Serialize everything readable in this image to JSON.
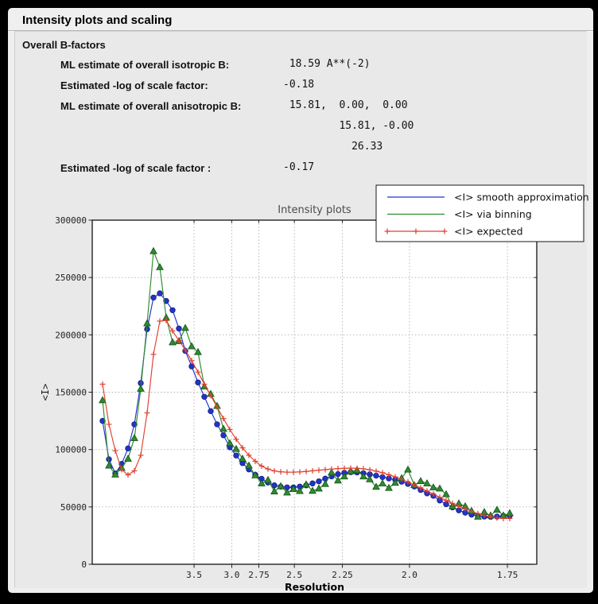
{
  "window": {
    "title": "Intensity plots and scaling"
  },
  "bfactors": {
    "section_title": "Overall B-factors",
    "rows": [
      {
        "label": "ML estimate of overall isotropic B:",
        "value": " 18.59 A**(-2)"
      },
      {
        "label": "Estimated -log of scale factor:",
        "value": "-0.18"
      },
      {
        "label": "ML estimate of overall anisotropic B:",
        "value": " 15.81,  0.00,  0.00"
      },
      {
        "label": "",
        "value": "         15.81, -0.00"
      },
      {
        "label": "",
        "value": "           26.33"
      },
      {
        "label": "Estimated -log of scale factor :",
        "value": "-0.17"
      }
    ]
  },
  "chart_data": {
    "type": "line",
    "title": "Intensity plots",
    "xlabel": "Resolution",
    "ylabel": "<I>",
    "grid": true,
    "legend_position": "upper-right-overlapping-plot",
    "plot_bg": "#ffffff",
    "grid_color": "#b0b0b0",
    "x_axis": {
      "transform": "1/d^2",
      "s_min": 0.00205,
      "s_max": 0.34947,
      "ticks_d": [
        3.5,
        3.0,
        2.75,
        2.5,
        2.25,
        2.0,
        1.75
      ],
      "tick_labels": [
        "3.5",
        "3.0",
        "2.75",
        "2.5",
        "2.25",
        "2.0",
        "1.75"
      ]
    },
    "y_axis": {
      "min": 0,
      "max": 300000,
      "ticks": [
        0,
        50000,
        100000,
        150000,
        200000,
        250000,
        300000
      ]
    },
    "s_start": 0.01013,
    "s_step": 0.004972,
    "series": [
      {
        "name": "<I> smooth approximation",
        "color": "#2233cc",
        "edge": "#141f7a",
        "marker": "circle",
        "values": [
          125000,
          91500,
          79200,
          87500,
          101000,
          122000,
          158000,
          205000,
          232500,
          236200,
          229500,
          221500,
          205500,
          186000,
          172500,
          158500,
          146000,
          133500,
          122000,
          112500,
          102000,
          94800,
          88200,
          82700,
          78000,
          74500,
          71300,
          68800,
          67600,
          67000,
          67000,
          67700,
          68800,
          70500,
          72300,
          74700,
          76600,
          78600,
          79800,
          80300,
          80100,
          79400,
          78400,
          77300,
          76000,
          74800,
          73600,
          72000,
          70100,
          67800,
          64800,
          61800,
          59700,
          55600,
          52400,
          49600,
          47000,
          45000,
          43300,
          42300,
          41600,
          41300,
          41600,
          42100,
          42400
        ]
      },
      {
        "name": "<I> via binning",
        "color": "#2e8b2e",
        "edge": "#14501a",
        "marker": "triangle",
        "values": [
          143000,
          86000,
          78200,
          84000,
          92000,
          110000,
          153000,
          210000,
          273000,
          259000,
          215000,
          193500,
          194500,
          206000,
          190000,
          185000,
          155000,
          148500,
          138000,
          118000,
          105500,
          100500,
          92000,
          86000,
          77500,
          70500,
          73500,
          63500,
          68000,
          62500,
          65500,
          63800,
          69600,
          64000,
          66000,
          70000,
          80000,
          73000,
          76500,
          81000,
          82000,
          76500,
          74000,
          67500,
          70500,
          66500,
          71000,
          75000,
          82500,
          69000,
          72500,
          70500,
          67000,
          66000,
          61000,
          50500,
          53000,
          50500,
          46500,
          41500,
          45500,
          42500,
          47500,
          42500,
          44500
        ]
      },
      {
        "name": "<I> expected",
        "color": "#e04030",
        "edge": "#e04030",
        "marker": "plus",
        "values": [
          157000,
          122000,
          99000,
          82500,
          77900,
          81500,
          95000,
          132000,
          183000,
          212000,
          212500,
          203500,
          195000,
          187000,
          177500,
          167500,
          157000,
          147000,
          137000,
          127000,
          117500,
          109000,
          101500,
          95000,
          89800,
          85600,
          83000,
          81400,
          80600,
          80300,
          80300,
          80500,
          80900,
          81500,
          82000,
          82500,
          83000,
          83400,
          83700,
          83800,
          83700,
          83200,
          82400,
          81200,
          79800,
          78100,
          76200,
          74000,
          71700,
          69200,
          66600,
          63900,
          61200,
          58400,
          55700,
          53100,
          50600,
          48200,
          46100,
          44200,
          42600,
          41300,
          40400,
          39900,
          39900
        ]
      }
    ]
  }
}
